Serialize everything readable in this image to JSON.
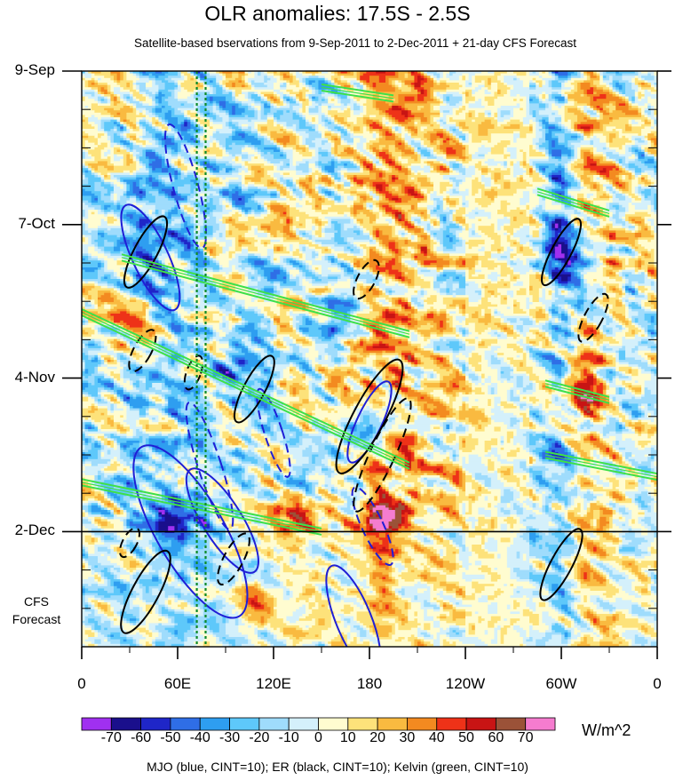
{
  "chart_data": {
    "type": "heatmap",
    "title": "OLR anomalies: 17.5S - 2.5S",
    "subtitle": "Satellite-based bservations from 9-Sep-2011 to 2-Dec-2011 + 21-day CFS Forecast",
    "x_ticks": [
      {
        "label": "0",
        "lon": 0
      },
      {
        "label": "60E",
        "lon": 60
      },
      {
        "label": "120E",
        "lon": 120
      },
      {
        "label": "180",
        "lon": 180
      },
      {
        "label": "120W",
        "lon": 240
      },
      {
        "label": "60W",
        "lon": 300
      },
      {
        "label": "0",
        "lon": 360
      }
    ],
    "y_ticks": [
      {
        "label": "9-Sep",
        "day": 0
      },
      {
        "label": "7-Oct",
        "day": 28
      },
      {
        "label": "4-Nov",
        "day": 56
      },
      {
        "label": "2-Dec",
        "day": 84
      }
    ],
    "observation_end_day": 84,
    "forecast_days": 21,
    "forecast_label": "CFS\nForecast",
    "reference_lines_lon": [
      72,
      77.5
    ],
    "colorbar": {
      "units": "W/m^2",
      "levels": [
        -70,
        -60,
        -50,
        -40,
        -30,
        -20,
        -10,
        0,
        10,
        20,
        30,
        40,
        50,
        60,
        70
      ],
      "labels": [
        "-70",
        "-60",
        "-50",
        "-40",
        "-30",
        "-20",
        "-10",
        "0",
        "10",
        "20",
        "30",
        "40",
        "50",
        "60",
        "70"
      ],
      "colors": [
        "#a030f0",
        "#1a0f8c",
        "#1f26c8",
        "#2f6ee6",
        "#2e9ef0",
        "#5ec8fa",
        "#9fdcfc",
        "#d4f0fb",
        "#fffcd0",
        "#fde27a",
        "#f9ba40",
        "#f38a20",
        "#ee3218",
        "#c81414",
        "#9b5238",
        "#f57ccf"
      ]
    },
    "contour_legend": "MJO (blue, CINT=10); ER (black, CINT=10); Kelvin (green, CINT=10)",
    "features": [
      {
        "kind": "suppressed_band",
        "lon_center": 196,
        "lon_width": 22,
        "value": 25
      },
      {
        "kind": "suppressed_band",
        "lon_center": 315,
        "lon_width": 18,
        "value": 22
      },
      {
        "kind": "suppressed_band",
        "lon_center": 255,
        "lon_width": 40,
        "value": 6
      },
      {
        "kind": "convective_band",
        "lon_center": 300,
        "lon_width": 14,
        "value": -30
      },
      {
        "kind": "convective_band",
        "lon_center": 60,
        "lon_width": 40,
        "value": -14
      },
      {
        "kind": "convective_blob",
        "lon": 60,
        "day": 81,
        "value": -55
      },
      {
        "kind": "convective_blob",
        "lon": 42,
        "day": 32,
        "value": -45
      },
      {
        "kind": "convective_blob",
        "lon": 180,
        "day": 66,
        "value": -45
      },
      {
        "kind": "convective_blob",
        "lon": 300,
        "day": 33,
        "value": -45
      },
      {
        "kind": "convective_blob",
        "lon": 100,
        "day": 55,
        "value": -35
      },
      {
        "kind": "convective_blob",
        "lon": 165,
        "day": 43,
        "value": -30
      },
      {
        "kind": "suppressed_blob",
        "lon": 105,
        "day": 97,
        "value": 40
      },
      {
        "kind": "suppressed_blob",
        "lon": 135,
        "day": 83,
        "value": 35
      },
      {
        "kind": "suppressed_blob",
        "lon": 185,
        "day": 83,
        "value": 45
      },
      {
        "kind": "suppressed_blob",
        "lon": 310,
        "day": 58,
        "value": 40
      },
      {
        "kind": "suppressed_blob",
        "lon": 35,
        "day": 48,
        "value": 30
      }
    ],
    "contours": {
      "mjo": [
        {
          "lon": 43,
          "day": 34,
          "rx": 20,
          "ry": 65,
          "rot": -25,
          "dash": false
        },
        {
          "lon": 65,
          "day": 21,
          "rx": 14,
          "ry": 72,
          "rot": -15,
          "dash": true
        },
        {
          "lon": 68,
          "day": 84,
          "rx": 38,
          "ry": 110,
          "rot": -30,
          "dash": false
        },
        {
          "lon": 88,
          "day": 82,
          "rx": 22,
          "ry": 68,
          "rot": -32,
          "dash": false
        },
        {
          "lon": 80,
          "day": 72,
          "rx": 13,
          "ry": 75,
          "rot": -18,
          "dash": true
        },
        {
          "lon": 120,
          "day": 66,
          "rx": 10,
          "ry": 52,
          "rot": -18,
          "dash": true
        },
        {
          "lon": 180,
          "day": 64,
          "rx": 14,
          "ry": 50,
          "rot": 25,
          "dash": false
        },
        {
          "lon": 182,
          "day": 83,
          "rx": 12,
          "ry": 48,
          "rot": -25,
          "dash": true
        },
        {
          "lon": 170,
          "day": 100,
          "rx": 20,
          "ry": 65,
          "rot": -22,
          "dash": false
        }
      ],
      "er": [
        {
          "lon": 40,
          "day": 33,
          "rx": 13,
          "ry": 45,
          "rot": 28,
          "dash": false
        },
        {
          "lon": 38,
          "day": 51,
          "rx": 10,
          "ry": 26,
          "rot": 28,
          "dash": true
        },
        {
          "lon": 108,
          "day": 58,
          "rx": 12,
          "ry": 42,
          "rot": 28,
          "dash": false
        },
        {
          "lon": 180,
          "day": 63,
          "rx": 18,
          "ry": 72,
          "rot": 28,
          "dash": false
        },
        {
          "lon": 188,
          "day": 70,
          "rx": 14,
          "ry": 70,
          "rot": 25,
          "dash": true
        },
        {
          "lon": 178,
          "day": 38,
          "rx": 10,
          "ry": 24,
          "rot": 28,
          "dash": true
        },
        {
          "lon": 300,
          "day": 33,
          "rx": 11,
          "ry": 42,
          "rot": 28,
          "dash": false
        },
        {
          "lon": 320,
          "day": 45,
          "rx": 10,
          "ry": 30,
          "rot": 28,
          "dash": true
        },
        {
          "lon": 300,
          "day": 90,
          "rx": 12,
          "ry": 45,
          "rot": 28,
          "dash": false
        },
        {
          "lon": 40,
          "day": 95,
          "rx": 15,
          "ry": 52,
          "rot": 28,
          "dash": false
        },
        {
          "lon": 95,
          "day": 89,
          "rx": 11,
          "ry": 32,
          "rot": 28,
          "dash": true
        },
        {
          "lon": 30,
          "day": 86,
          "rx": 8,
          "ry": 18,
          "rot": 28,
          "dash": true
        },
        {
          "lon": 70,
          "day": 55,
          "rx": 8,
          "ry": 20,
          "rot": 20,
          "dash": true
        }
      ],
      "kelvin": [
        {
          "lon0": 0,
          "day0": 44,
          "lon1": 205,
          "day1": 72
        },
        {
          "lon0": 25,
          "day0": 34,
          "lon1": 205,
          "day1": 48
        },
        {
          "lon0": 0,
          "day0": 75,
          "lon1": 150,
          "day1": 84
        },
        {
          "lon0": 290,
          "day0": 70,
          "lon1": 360,
          "day1": 74
        },
        {
          "lon0": 290,
          "day0": 57,
          "lon1": 330,
          "day1": 60
        },
        {
          "lon0": 285,
          "day0": 22,
          "lon1": 330,
          "day1": 26
        },
        {
          "lon0": 150,
          "day0": 3,
          "lon1": 195,
          "day1": 5
        }
      ]
    }
  }
}
